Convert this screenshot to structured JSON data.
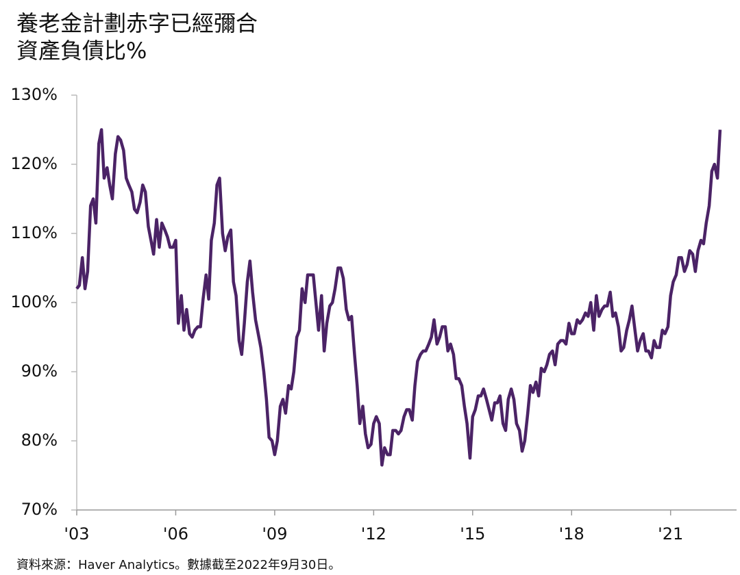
{
  "chart_data": {
    "type": "line",
    "title": "養老金計劃赤字已經彌合",
    "subtitle": "資產負債比%",
    "source": "資料來源：Haver Analytics。數據截至2022年9月30日。",
    "x": [
      2003.0,
      2003.08,
      2003.17,
      2003.25,
      2003.33,
      2003.42,
      2003.5,
      2003.58,
      2003.67,
      2003.75,
      2003.83,
      2003.92,
      2004.0,
      2004.08,
      2004.17,
      2004.25,
      2004.33,
      2004.42,
      2004.5,
      2004.58,
      2004.67,
      2004.75,
      2004.83,
      2004.92,
      2005.0,
      2005.08,
      2005.17,
      2005.25,
      2005.33,
      2005.42,
      2005.5,
      2005.58,
      2005.67,
      2005.75,
      2005.83,
      2005.92,
      2006.0,
      2006.08,
      2006.17,
      2006.25,
      2006.33,
      2006.42,
      2006.5,
      2006.58,
      2006.67,
      2006.75,
      2006.83,
      2006.92,
      2007.0,
      2007.08,
      2007.17,
      2007.25,
      2007.33,
      2007.42,
      2007.5,
      2007.58,
      2007.67,
      2007.75,
      2007.83,
      2007.92,
      2008.0,
      2008.08,
      2008.17,
      2008.25,
      2008.33,
      2008.42,
      2008.5,
      2008.58,
      2008.67,
      2008.75,
      2008.83,
      2008.92,
      2009.0,
      2009.08,
      2009.17,
      2009.25,
      2009.33,
      2009.42,
      2009.5,
      2009.58,
      2009.67,
      2009.75,
      2009.83,
      2009.92,
      2010.0,
      2010.08,
      2010.17,
      2010.25,
      2010.33,
      2010.42,
      2010.5,
      2010.58,
      2010.67,
      2010.75,
      2010.83,
      2010.92,
      2011.0,
      2011.08,
      2011.17,
      2011.25,
      2011.33,
      2011.42,
      2011.5,
      2011.58,
      2011.67,
      2011.75,
      2011.83,
      2011.92,
      2012.0,
      2012.08,
      2012.17,
      2012.25,
      2012.33,
      2012.42,
      2012.5,
      2012.58,
      2012.67,
      2012.75,
      2012.83,
      2012.92,
      2013.0,
      2013.08,
      2013.17,
      2013.25,
      2013.33,
      2013.42,
      2013.5,
      2013.58,
      2013.67,
      2013.75,
      2013.83,
      2013.92,
      2014.0,
      2014.08,
      2014.17,
      2014.25,
      2014.33,
      2014.42,
      2014.5,
      2014.58,
      2014.67,
      2014.75,
      2014.83,
      2014.92,
      2015.0,
      2015.08,
      2015.17,
      2015.25,
      2015.33,
      2015.42,
      2015.5,
      2015.58,
      2015.67,
      2015.75,
      2015.83,
      2015.92,
      2016.0,
      2016.08,
      2016.17,
      2016.25,
      2016.33,
      2016.42,
      2016.5,
      2016.58,
      2016.67,
      2016.75,
      2016.83,
      2016.92,
      2017.0,
      2017.08,
      2017.17,
      2017.25,
      2017.33,
      2017.42,
      2017.5,
      2017.58,
      2017.67,
      2017.75,
      2017.83,
      2017.92,
      2018.0,
      2018.08,
      2018.17,
      2018.25,
      2018.33,
      2018.42,
      2018.5,
      2018.58,
      2018.67,
      2018.75,
      2018.83,
      2018.92,
      2019.0,
      2019.08,
      2019.17,
      2019.25,
      2019.33,
      2019.42,
      2019.5,
      2019.58,
      2019.67,
      2019.75,
      2019.83,
      2019.92,
      2020.0,
      2020.08,
      2020.17,
      2020.25,
      2020.33,
      2020.42,
      2020.5,
      2020.58,
      2020.67,
      2020.75,
      2020.83,
      2020.92,
      2021.0,
      2021.08,
      2021.17,
      2021.25,
      2021.33,
      2021.42,
      2021.5,
      2021.58,
      2021.67,
      2021.75,
      2021.83,
      2021.92,
      2022.0,
      2022.08,
      2022.17,
      2022.25,
      2022.33,
      2022.42,
      2022.5
    ],
    "series": [
      {
        "color": "#4b2366",
        "values": [
          102,
          102.5,
          106.5,
          102,
          104.5,
          114,
          115,
          111.5,
          123,
          125,
          118,
          119.5,
          117,
          115,
          121.5,
          124,
          123.5,
          122,
          118,
          117,
          116,
          113.5,
          113,
          114.5,
          117,
          116,
          111,
          109,
          107,
          112,
          108,
          111.5,
          110.5,
          109.5,
          108,
          108,
          109,
          97,
          101,
          96,
          99,
          95.5,
          95,
          96,
          96.5,
          96.5,
          100.5,
          104,
          100.5,
          109,
          111.5,
          117,
          118,
          110,
          107.5,
          109.5,
          110.5,
          103,
          101,
          94.5,
          92.5,
          97,
          103,
          106,
          101.5,
          97.5,
          95.5,
          93.5,
          90,
          86,
          80.5,
          80,
          78,
          80,
          85,
          86,
          84,
          88,
          87.5,
          90,
          95,
          96,
          102,
          100,
          104,
          104,
          104,
          100,
          96,
          101,
          93,
          97,
          99.5,
          100,
          102,
          105,
          105,
          103.5,
          99,
          97.5,
          98,
          92.5,
          88,
          82.5,
          85,
          81,
          79,
          79.5,
          82.5,
          83.5,
          82.5,
          76.5,
          79,
          78,
          78,
          81.5,
          81.5,
          81,
          81.5,
          83.5,
          84.5,
          84.5,
          83,
          88,
          91.5,
          92.5,
          93,
          93,
          94,
          95,
          97.5,
          94,
          95,
          96.5,
          96.5,
          93,
          94,
          92.5,
          89,
          89,
          88,
          85,
          82.5,
          77.5,
          83.5,
          84.5,
          86.5,
          86.5,
          87.5,
          86,
          84.5,
          83,
          85.5,
          85.5,
          86.5,
          82.5,
          81.5,
          86,
          87.5,
          86,
          82.5,
          81.5,
          78.5,
          80,
          84,
          88,
          87,
          88.5,
          86.5,
          90.5,
          90,
          91,
          92.5,
          93,
          91,
          94,
          94.5,
          94.5,
          94,
          97,
          95.5,
          95.5,
          97.5,
          97,
          97.5,
          98.5,
          98,
          100,
          96,
          101,
          98,
          99,
          99.5,
          99.5,
          101.5,
          98,
          98.5,
          96.5,
          93,
          93.5,
          96,
          97.5,
          99.5,
          96,
          93,
          94.5,
          95.5,
          93,
          93,
          92,
          94.5,
          93.5,
          93.5,
          96,
          95.5,
          96.5,
          101,
          103,
          104,
          106.5,
          106.5,
          104.5,
          105.5,
          107.5,
          107,
          104.5,
          107.5,
          109,
          108.5,
          111.5,
          114,
          119,
          120,
          118,
          125
        ]
      }
    ],
    "xlim": [
      2003,
      2023
    ],
    "xticks": [
      {
        "value": 2003,
        "label": "'03"
      },
      {
        "value": 2006,
        "label": "'06"
      },
      {
        "value": 2009,
        "label": "'09"
      },
      {
        "value": 2012,
        "label": "'12"
      },
      {
        "value": 2015,
        "label": "'15"
      },
      {
        "value": 2018,
        "label": "'18"
      },
      {
        "value": 2021,
        "label": "'21"
      }
    ],
    "ylim": [
      70,
      130
    ],
    "yticks": [
      {
        "value": 70,
        "label": "70%"
      },
      {
        "value": 80,
        "label": "80%"
      },
      {
        "value": 90,
        "label": "90%"
      },
      {
        "value": 100,
        "label": "100%"
      },
      {
        "value": 110,
        "label": "110%"
      },
      {
        "value": 120,
        "label": "120%"
      },
      {
        "value": 130,
        "label": "130%"
      }
    ],
    "grid": false
  }
}
